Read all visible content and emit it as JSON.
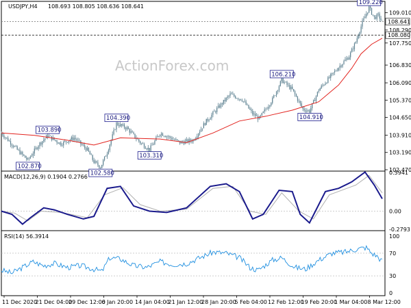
{
  "header": {
    "symbol": "USDJPY,H4",
    "ohlc": "108.693 108.805 108.636 108.641"
  },
  "watermark": "ActionForex.com",
  "colors": {
    "candle": "#5a7f8f",
    "ma": "#e2211c",
    "macd": "#1a1a8c",
    "signal": "#b0b0b0",
    "rsi": "#1f8fe0",
    "label_border": "#1a1a8c",
    "label_text": "#1a1a7e"
  },
  "chart_data": [
    {
      "type": "line",
      "name": "price",
      "y_ticks": [
        "109.010",
        "108.290",
        "107.750",
        "106.830",
        "106.090",
        "105.370",
        "104.650",
        "103.910",
        "103.190",
        "102.470"
      ],
      "ylim": [
        102.47,
        109.37
      ],
      "current_price": "108.641",
      "reference_price": "108.080",
      "price_path": [
        [
          0,
          104.0
        ],
        [
          7,
          103.6
        ],
        [
          12,
          103.3
        ],
        [
          20,
          102.87
        ],
        [
          28,
          103.5
        ],
        [
          35,
          103.89
        ],
        [
          45,
          103.55
        ],
        [
          55,
          103.8
        ],
        [
          65,
          103.3
        ],
        [
          70,
          102.8
        ],
        [
          75,
          102.58
        ],
        [
          80,
          103.2
        ],
        [
          87,
          104.39
        ],
        [
          95,
          104.2
        ],
        [
          105,
          103.6
        ],
        [
          112,
          103.31
        ],
        [
          120,
          104.0
        ],
        [
          128,
          103.8
        ],
        [
          135,
          103.6
        ],
        [
          145,
          103.7
        ],
        [
          155,
          104.5
        ],
        [
          163,
          105.0
        ],
        [
          173,
          105.6
        ],
        [
          182,
          105.4
        ],
        [
          190,
          104.8
        ],
        [
          195,
          104.6
        ],
        [
          205,
          105.4
        ],
        [
          212,
          106.21
        ],
        [
          220,
          105.8
        ],
        [
          228,
          105.0
        ],
        [
          233,
          104.91
        ],
        [
          240,
          105.8
        ],
        [
          248,
          106.3
        ],
        [
          256,
          106.8
        ],
        [
          263,
          107.2
        ],
        [
          268,
          107.8
        ],
        [
          273,
          108.6
        ],
        [
          278,
          109.22
        ],
        [
          282,
          108.8
        ],
        [
          285,
          108.9
        ],
        [
          288,
          108.64
        ]
      ],
      "ma_path": [
        [
          0,
          104.0
        ],
        [
          25,
          103.9
        ],
        [
          50,
          103.7
        ],
        [
          70,
          103.5
        ],
        [
          90,
          103.8
        ],
        [
          120,
          103.75
        ],
        [
          140,
          103.6
        ],
        [
          160,
          104.0
        ],
        [
          180,
          104.5
        ],
        [
          200,
          104.7
        ],
        [
          220,
          104.95
        ],
        [
          240,
          105.3
        ],
        [
          255,
          106.0
        ],
        [
          265,
          106.7
        ],
        [
          272,
          107.3
        ],
        [
          280,
          107.7
        ],
        [
          288,
          107.95
        ]
      ],
      "annotations": [
        {
          "text": "102.870",
          "bar": 20,
          "price": 102.87,
          "pos": "below"
        },
        {
          "text": "103.890",
          "bar": 35,
          "price": 103.89,
          "pos": "above"
        },
        {
          "text": "102.580",
          "bar": 75,
          "price": 102.58,
          "pos": "below"
        },
        {
          "text": "104.390",
          "bar": 87,
          "price": 104.39,
          "pos": "above"
        },
        {
          "text": "103.310",
          "bar": 112,
          "price": 103.31,
          "pos": "below"
        },
        {
          "text": "106.210",
          "bar": 212,
          "price": 106.21,
          "pos": "above"
        },
        {
          "text": "104.910",
          "bar": 233,
          "price": 104.91,
          "pos": "below"
        },
        {
          "text": "109.220",
          "bar": 278,
          "price": 109.22,
          "pos": "above"
        }
      ]
    },
    {
      "type": "line",
      "name": "MACD",
      "title": "MACD(12,26,9) 0.1904 0.2766",
      "y_ticks": [
        "0.5941",
        "0.00",
        "-0.2793"
      ],
      "ylim": [
        -0.2793,
        0.5941
      ],
      "macd_path": [
        [
          0,
          0.0
        ],
        [
          8,
          -0.05
        ],
        [
          16,
          -0.2
        ],
        [
          22,
          -0.1
        ],
        [
          32,
          0.05
        ],
        [
          40,
          0.02
        ],
        [
          50,
          -0.05
        ],
        [
          62,
          -0.12
        ],
        [
          70,
          -0.08
        ],
        [
          80,
          0.35
        ],
        [
          90,
          0.38
        ],
        [
          100,
          0.08
        ],
        [
          112,
          0.0
        ],
        [
          125,
          -0.02
        ],
        [
          140,
          0.05
        ],
        [
          158,
          0.38
        ],
        [
          170,
          0.42
        ],
        [
          180,
          0.3
        ],
        [
          190,
          -0.12
        ],
        [
          198,
          -0.05
        ],
        [
          210,
          0.32
        ],
        [
          220,
          0.3
        ],
        [
          226,
          -0.05
        ],
        [
          233,
          -0.18
        ],
        [
          245,
          0.3
        ],
        [
          255,
          0.35
        ],
        [
          265,
          0.45
        ],
        [
          275,
          0.6
        ],
        [
          282,
          0.4
        ],
        [
          288,
          0.19
        ]
      ],
      "signal_path": [
        [
          0,
          0.0
        ],
        [
          10,
          -0.03
        ],
        [
          20,
          -0.15
        ],
        [
          30,
          0.0
        ],
        [
          45,
          -0.02
        ],
        [
          65,
          -0.1
        ],
        [
          78,
          0.25
        ],
        [
          92,
          0.36
        ],
        [
          105,
          0.1
        ],
        [
          120,
          0.0
        ],
        [
          140,
          0.03
        ],
        [
          160,
          0.35
        ],
        [
          175,
          0.38
        ],
        [
          188,
          0.0
        ],
        [
          200,
          -0.05
        ],
        [
          212,
          0.28
        ],
        [
          225,
          0.0
        ],
        [
          236,
          -0.12
        ],
        [
          248,
          0.25
        ],
        [
          268,
          0.4
        ],
        [
          278,
          0.55
        ],
        [
          288,
          0.28
        ]
      ]
    },
    {
      "type": "line",
      "name": "RSI",
      "title": "RSI(14) 56.3914",
      "y_ticks": [
        "100",
        "70",
        "30",
        "0"
      ],
      "ylim": [
        0,
        100
      ],
      "reference_lines": [
        70,
        30
      ],
      "rsi_path": [
        [
          0,
          40
        ],
        [
          8,
          35
        ],
        [
          16,
          45
        ],
        [
          24,
          55
        ],
        [
          32,
          48
        ],
        [
          40,
          52
        ],
        [
          50,
          45
        ],
        [
          60,
          48
        ],
        [
          70,
          42
        ],
        [
          76,
          38
        ],
        [
          82,
          62
        ],
        [
          90,
          60
        ],
        [
          100,
          48
        ],
        [
          110,
          45
        ],
        [
          120,
          55
        ],
        [
          130,
          50
        ],
        [
          140,
          52
        ],
        [
          150,
          62
        ],
        [
          160,
          72
        ],
        [
          170,
          70
        ],
        [
          180,
          62
        ],
        [
          188,
          45
        ],
        [
          194,
          40
        ],
        [
          205,
          58
        ],
        [
          212,
          62
        ],
        [
          222,
          45
        ],
        [
          230,
          42
        ],
        [
          240,
          58
        ],
        [
          250,
          70
        ],
        [
          260,
          72
        ],
        [
          270,
          78
        ],
        [
          276,
          80
        ],
        [
          280,
          70
        ],
        [
          284,
          65
        ],
        [
          288,
          56
        ]
      ]
    }
  ],
  "x_axis": {
    "labels": [
      "11 Dec 2020",
      "21 Dec 04:00",
      "29 Dec 12:00",
      "6 Jan 20:00",
      "14 Jan 04:00",
      "21 Jan 12:00",
      "28 Jan 20:00",
      "5 Feb 04:00",
      "12 Feb 12:00",
      "19 Feb 20:00",
      "1 Mar 04:00",
      "8 Mar 12:00"
    ]
  }
}
